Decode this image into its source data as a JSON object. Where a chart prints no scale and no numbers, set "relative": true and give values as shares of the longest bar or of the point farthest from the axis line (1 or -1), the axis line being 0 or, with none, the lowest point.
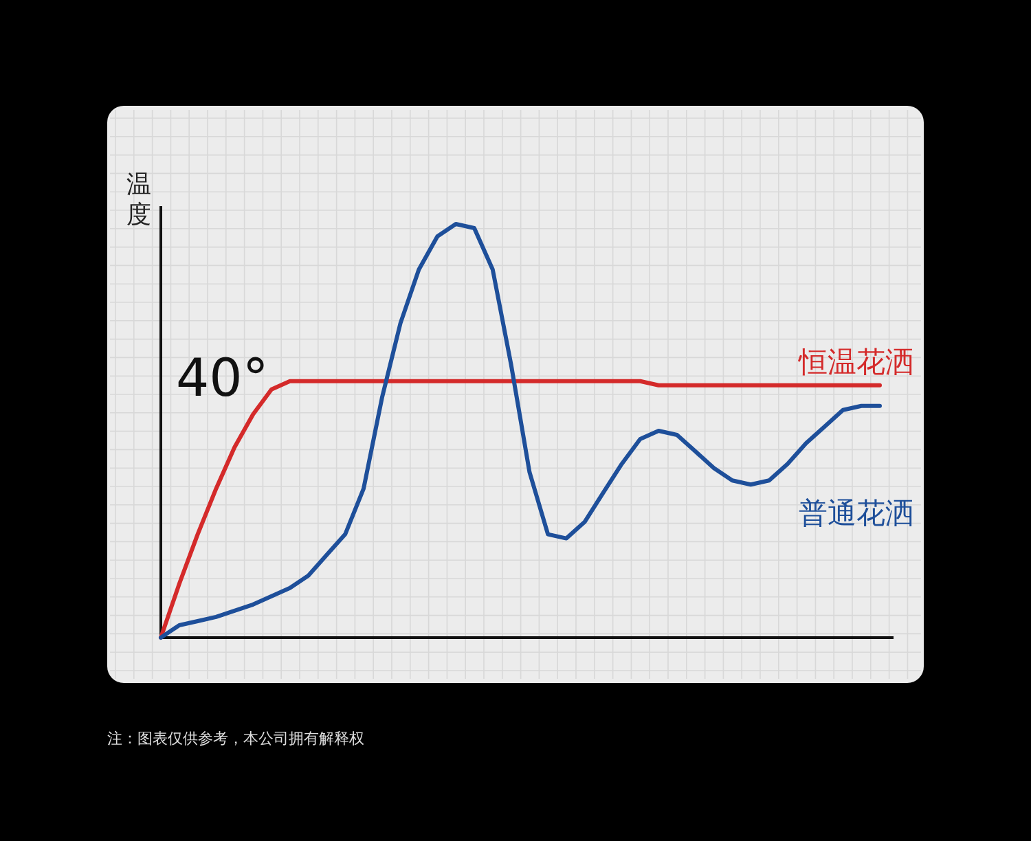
{
  "chart_data": {
    "type": "line",
    "relative": true,
    "ylabel": "温度",
    "grid": true,
    "marker": "none",
    "line_style": "solid",
    "categories": [
      null,
      null,
      null,
      null,
      null,
      null,
      null,
      null,
      null,
      null,
      null,
      null,
      null,
      null,
      null,
      null,
      null,
      null,
      null,
      null,
      null,
      null,
      null,
      null,
      null,
      null,
      null,
      null,
      null,
      null,
      null,
      null,
      null,
      null,
      null,
      null,
      null,
      null,
      null,
      null
    ],
    "series": [
      {
        "name": "恒温花洒",
        "color": "#d42a2a",
        "values": [
          0,
          0.13,
          0.25,
          0.36,
          0.46,
          0.54,
          0.6,
          0.62,
          0.62,
          0.62,
          0.62,
          0.62,
          0.62,
          0.62,
          0.62,
          0.62,
          0.62,
          0.62,
          0.62,
          0.62,
          0.62,
          0.62,
          0.62,
          0.62,
          0.62,
          0.62,
          0.62,
          0.61,
          0.61,
          0.61,
          0.61,
          0.61,
          0.61,
          0.61,
          0.61,
          0.61,
          0.61,
          0.61,
          0.61,
          0.61
        ]
      },
      {
        "name": "普通花洒",
        "color": "#1e4f9a",
        "values": [
          0,
          0.03,
          0.04,
          0.05,
          0.065,
          0.08,
          0.1,
          0.12,
          0.15,
          0.2,
          0.25,
          0.36,
          0.58,
          0.76,
          0.89,
          0.97,
          1.0,
          0.99,
          0.89,
          0.66,
          0.4,
          0.25,
          0.24,
          0.28,
          0.35,
          0.42,
          0.48,
          0.5,
          0.49,
          0.45,
          0.41,
          0.38,
          0.37,
          0.38,
          0.42,
          0.47,
          0.51,
          0.55,
          0.56,
          0.56
        ]
      }
    ],
    "annotations": [
      "40°",
      "注：图表仅供参考，本公司拥有解释权"
    ]
  }
}
